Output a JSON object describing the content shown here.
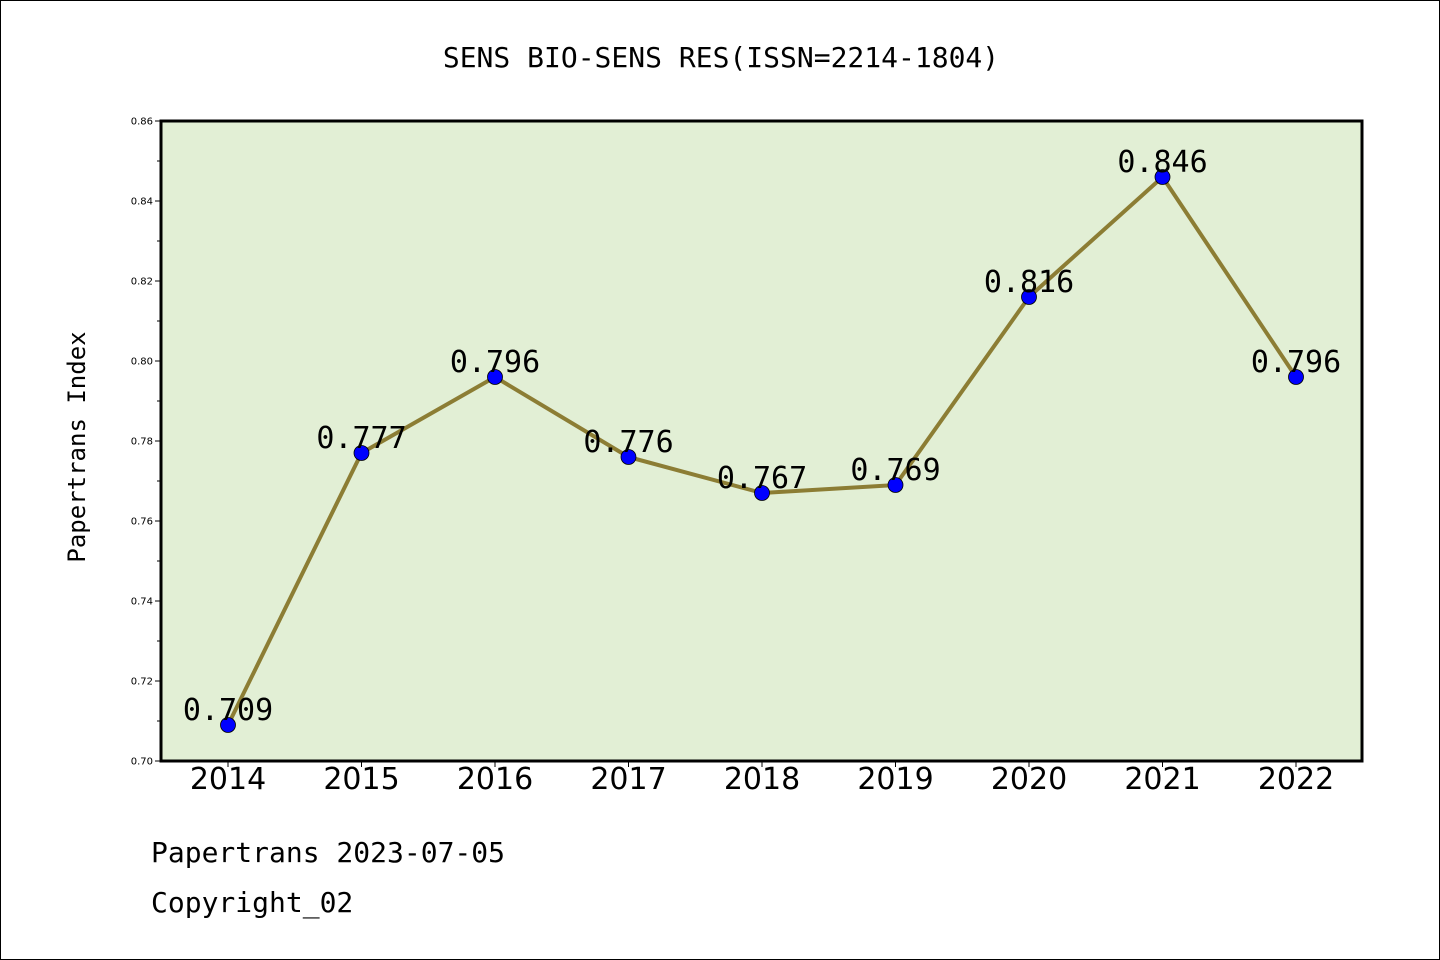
{
  "chart_data": {
    "type": "line",
    "title": "SENS BIO-SENS RES(ISSN=2214-1804)",
    "xlabel": "",
    "ylabel": "Papertrans Index",
    "categories": [
      "2014",
      "2015",
      "2016",
      "2017",
      "2018",
      "2019",
      "2020",
      "2021",
      "2022"
    ],
    "series": [
      {
        "values": [
          0.709,
          0.777,
          0.796,
          0.776,
          0.767,
          0.769,
          0.816,
          0.846,
          0.796
        ]
      }
    ],
    "data_labels": [
      "0.709",
      "0.777",
      "0.796",
      "0.776",
      "0.767",
      "0.769",
      "0.816",
      "0.846",
      "0.796"
    ],
    "ylim": [
      0.7,
      0.86
    ],
    "yticks": [
      "0.70",
      "0.72",
      "0.74",
      "0.76",
      "0.78",
      "0.80",
      "0.82",
      "0.84",
      "0.86"
    ],
    "grid": false,
    "colors": {
      "plot_background": "#e2efd5",
      "line": "#8c7d34",
      "marker": "#0000ff"
    }
  },
  "footer": {
    "date_line": "Papertrans 2023-07-05",
    "copyright": "Copyright_02"
  }
}
